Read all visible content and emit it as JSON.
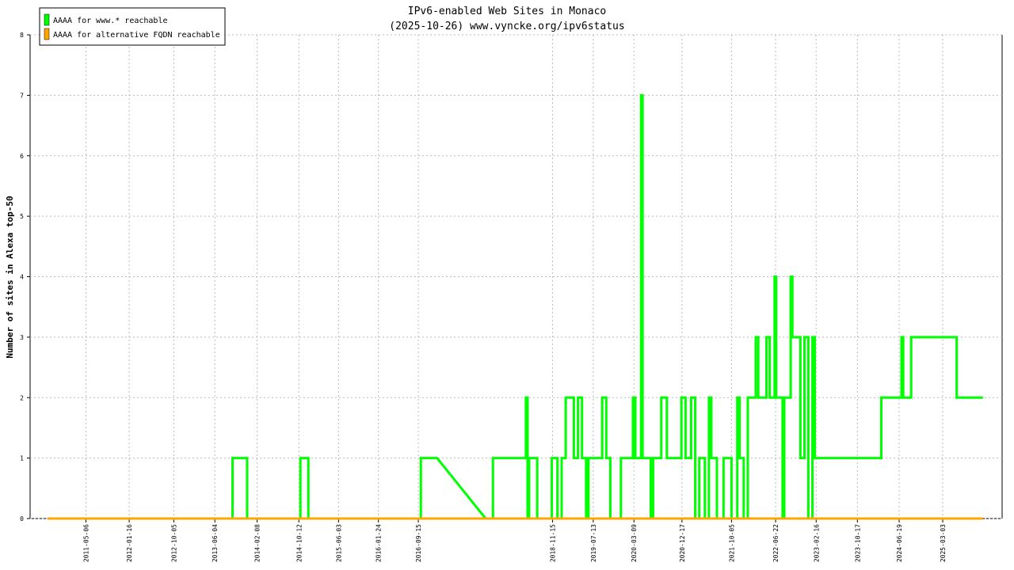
{
  "chart_data": {
    "type": "line",
    "title": "IPv6-enabled Web Sites in Monaco",
    "subtitle": "(2025-10-26) www.vyncke.org/ipv6status",
    "y_label": "Number of sites in Alexa top-50",
    "xlim": [
      "2010-06-11",
      "2026-02-16"
    ],
    "xticks": [
      "2011-05-06",
      "2012-01-16",
      "2012-10-05",
      "2013-06-04",
      "2014-02-08",
      "2014-10-12",
      "2015-06-03",
      "2016-01-24",
      "2016-09-15",
      "2018-11-15",
      "2019-07-13",
      "2020-03-09",
      "2020-12-17",
      "2021-10-05",
      "2022-06-22",
      "2023-02-16",
      "2023-10-17",
      "2024-06-19",
      "2025-03-03"
    ],
    "ylim": [
      0,
      8
    ],
    "yticks": [
      0,
      1,
      2,
      3,
      4,
      5,
      6,
      7,
      8
    ],
    "grid": true,
    "legend": "top-left",
    "series": [
      {
        "name": "AAAA for www.* reachable",
        "color": "#00ff00",
        "x": [
          "2010-09-24",
          "2013-09-16",
          "2013-09-16",
          "2013-12-11",
          "2013-12-11",
          "2014-10-21",
          "2014-10-21",
          "2014-12-07",
          "2014-12-07",
          "2016-09-30",
          "2016-09-30",
          "2017-01-04",
          "2017-10-17",
          "2017-11-29",
          "2017-11-29",
          "2018-06-11",
          "2018-06-11",
          "2018-06-21",
          "2018-06-21",
          "2018-06-30",
          "2018-06-30",
          "2018-08-17",
          "2018-08-17",
          "2018-11-11",
          "2018-11-11",
          "2018-12-14",
          "2018-12-14",
          "2019-01-08",
          "2019-01-08",
          "2019-02-01",
          "2019-02-01",
          "2019-03-21",
          "2019-03-21",
          "2019-04-14",
          "2019-04-14",
          "2019-05-08",
          "2019-05-08",
          "2019-06-01",
          "2019-06-01",
          "2019-06-15",
          "2019-06-15",
          "2019-09-04",
          "2019-09-04",
          "2019-09-28",
          "2019-09-28",
          "2019-10-22",
          "2019-10-22",
          "2019-12-23",
          "2019-12-23",
          "2020-03-03",
          "2020-03-03",
          "2020-03-17",
          "2020-03-17",
          "2020-04-20",
          "2020-04-20",
          "2020-04-29",
          "2020-04-29",
          "2020-06-16",
          "2020-06-16",
          "2020-06-30",
          "2020-06-30",
          "2020-08-17",
          "2020-08-17",
          "2020-09-19",
          "2020-09-19",
          "2020-12-14",
          "2020-12-14",
          "2021-01-07",
          "2021-01-07",
          "2021-02-09",
          "2021-02-09",
          "2021-03-05",
          "2021-03-05",
          "2021-03-29",
          "2021-03-29",
          "2021-05-01",
          "2021-05-01",
          "2021-05-25",
          "2021-05-25",
          "2021-06-08",
          "2021-06-08",
          "2021-07-11",
          "2021-07-11",
          "2021-08-19",
          "2021-08-19",
          "2021-10-05",
          "2021-10-05",
          "2021-11-08",
          "2021-11-08",
          "2021-11-22",
          "2021-11-22",
          "2021-12-16",
          "2021-12-16",
          "2022-01-09",
          "2022-01-09",
          "2022-02-25",
          "2022-02-25",
          "2022-03-12",
          "2022-03-12",
          "2022-04-29",
          "2022-04-29",
          "2022-05-18",
          "2022-05-18",
          "2022-06-16",
          "2022-06-16",
          "2022-06-25",
          "2022-06-25",
          "2022-08-02",
          "2022-08-02",
          "2022-08-12",
          "2022-08-12",
          "2022-09-19",
          "2022-09-19",
          "2022-09-29",
          "2022-09-29",
          "2022-11-15",
          "2022-11-15",
          "2022-12-09",
          "2022-12-09",
          "2023-01-01",
          "2023-01-01",
          "2023-01-25",
          "2023-01-25",
          "2023-02-08",
          "2023-02-08",
          "2024-03-06",
          "2024-03-06",
          "2024-07-03",
          "2024-07-03",
          "2024-07-13",
          "2024-07-13",
          "2024-08-29",
          "2024-08-29",
          "2025-05-24",
          "2025-05-24",
          "2025-10-26"
        ],
        "values": [
          0,
          0,
          1,
          1,
          0,
          0,
          1,
          1,
          0,
          0,
          1,
          1,
          0,
          0,
          1,
          1,
          2,
          2,
          0,
          0,
          1,
          1,
          0,
          0,
          1,
          1,
          0,
          0,
          1,
          1,
          2,
          2,
          1,
          1,
          2,
          2,
          1,
          1,
          0,
          0,
          1,
          1,
          2,
          2,
          1,
          1,
          0,
          0,
          1,
          1,
          2,
          2,
          1,
          1,
          7,
          7,
          1,
          1,
          0,
          0,
          1,
          1,
          2,
          2,
          1,
          1,
          2,
          2,
          1,
          1,
          2,
          2,
          0,
          0,
          1,
          1,
          0,
          0,
          2,
          2,
          1,
          1,
          0,
          0,
          1,
          1,
          0,
          0,
          2,
          2,
          1,
          1,
          0,
          0,
          2,
          2,
          3,
          3,
          2,
          2,
          3,
          3,
          2,
          2,
          4,
          4,
          2,
          2,
          0,
          0,
          2,
          2,
          4,
          4,
          3,
          3,
          1,
          1,
          3,
          3,
          0,
          0,
          3,
          3,
          1,
          1,
          2,
          2,
          3,
          3,
          2,
          2,
          3,
          3,
          2,
          2
        ]
      },
      {
        "name": "AAAA for alternative FQDN reachable",
        "color": "#ffa500",
        "x": [
          "2010-09-24",
          "2025-10-26"
        ],
        "values": [
          0,
          0
        ]
      }
    ]
  }
}
